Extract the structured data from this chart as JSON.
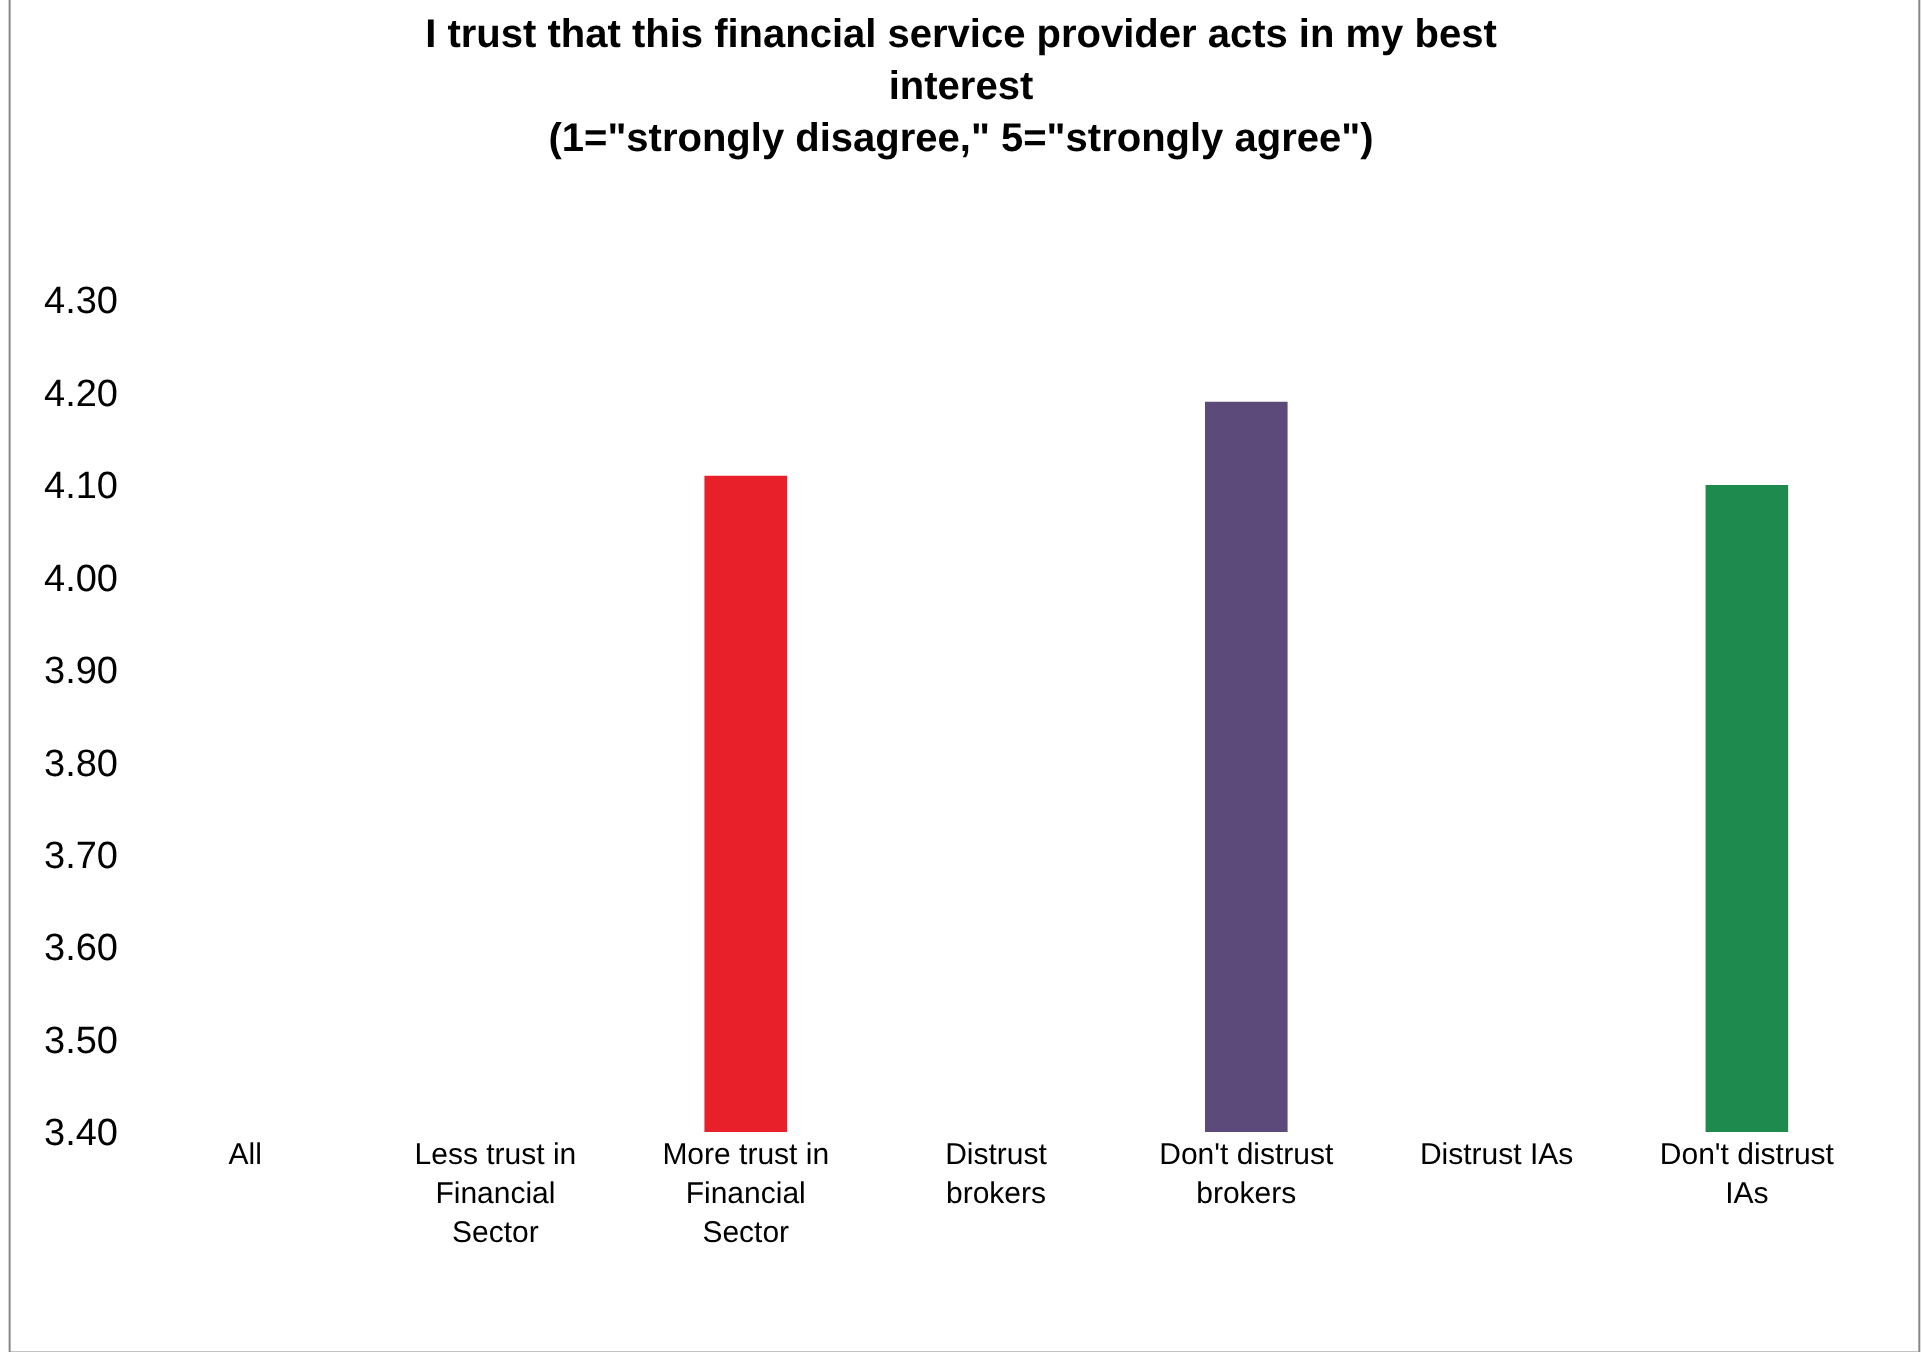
{
  "chart_data": {
    "type": "bar",
    "title": "I trust that this financial service provider acts in my best interest",
    "subtitle": "(1=\"strongly disagree,\" 5=\"strongly agree\")",
    "categories": [
      "All",
      "Less trust in Financial Sector",
      "More trust in Financial Sector",
      "Distrust brokers",
      "Don't distrust brokers",
      "Distrust IAs",
      "Don't distrust IAs"
    ],
    "values": [
      null,
      null,
      4.11,
      null,
      4.19,
      null,
      4.1
    ],
    "colors": [
      "#888888",
      "#888888",
      "#e8202a",
      "#888888",
      "#5b4a7a",
      "#888888",
      "#1e8a4e"
    ],
    "ylim": [
      3.4,
      4.3
    ],
    "yticks": [
      {
        "value": 3.4,
        "label": "3.40"
      },
      {
        "value": 3.5,
        "label": "3.50"
      },
      {
        "value": 3.6,
        "label": "3.60"
      },
      {
        "value": 3.7,
        "label": "3.70"
      },
      {
        "value": 3.8,
        "label": "3.80"
      },
      {
        "value": 3.9,
        "label": "3.90"
      },
      {
        "value": 4.0,
        "label": "4.00"
      },
      {
        "value": 4.1,
        "label": "4.10"
      },
      {
        "value": 4.2,
        "label": "4.20"
      },
      {
        "value": 4.3,
        "label": "4.30"
      }
    ],
    "legend": false
  }
}
